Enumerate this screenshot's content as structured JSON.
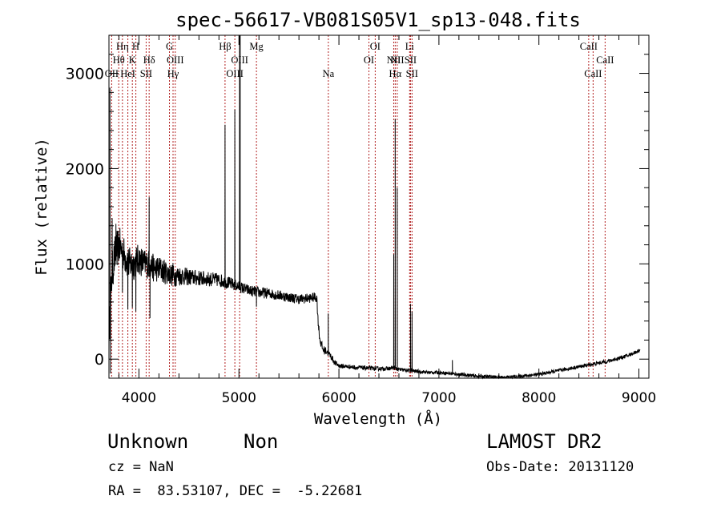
{
  "chart_data": {
    "type": "line",
    "title": "spec-56617-VB081S05V1_sp13-048.fits",
    "xlabel": "Wavelength (Å)",
    "ylabel": "Flux (relative)",
    "xlim": [
      3700,
      9100
    ],
    "ylim": [
      -200,
      3400
    ],
    "xticks": [
      4000,
      5000,
      6000,
      7000,
      8000,
      9000
    ],
    "yticks": [
      0,
      1000,
      2000,
      3000
    ],
    "grid": false,
    "line_color": "#000000",
    "marker_color": "#b22222",
    "lines": [
      {
        "label": "OII",
        "x": 3727,
        "row": 3
      },
      {
        "label": "Hθ",
        "x": 3798,
        "row": 2
      },
      {
        "label": "Hη",
        "x": 3835,
        "row": 1
      },
      {
        "label": "HeI",
        "x": 3889,
        "row": 3
      },
      {
        "label": "K",
        "x": 3934,
        "row": 2
      },
      {
        "label": "H",
        "x": 3969,
        "row": 1
      },
      {
        "label": "SII",
        "x": 4072,
        "row": 3
      },
      {
        "label": "Hδ",
        "x": 4102,
        "row": 2
      },
      {
        "label": "G",
        "x": 4305,
        "row": 1
      },
      {
        "label": "Hγ",
        "x": 4341,
        "row": 3
      },
      {
        "label": "OIII",
        "x": 4363,
        "row": 2
      },
      {
        "label": "Hβ",
        "x": 4861,
        "row": 1
      },
      {
        "label": "OIII",
        "x": 4959,
        "row": 3
      },
      {
        "label": "OIII",
        "x": 5007,
        "row": 2
      },
      {
        "label": "Mg",
        "x": 5175,
        "row": 1
      },
      {
        "label": "Na",
        "x": 5894,
        "row": 3
      },
      {
        "label": "OI",
        "x": 6300,
        "row": 2
      },
      {
        "label": "OI",
        "x": 6363,
        "row": 1
      },
      {
        "label": "NII",
        "x": 6548,
        "row": 2
      },
      {
        "label": "Hα",
        "x": 6563,
        "row": 3
      },
      {
        "label": "NII",
        "x": 6583,
        "row": 2
      },
      {
        "label": "Li",
        "x": 6707,
        "row": 1
      },
      {
        "label": "SII",
        "x": 6716,
        "row": 2
      },
      {
        "label": "SII",
        "x": 6731,
        "row": 3
      },
      {
        "label": "CaII",
        "x": 8498,
        "row": 1
      },
      {
        "label": "CaII",
        "x": 8542,
        "row": 3
      },
      {
        "label": "CaII",
        "x": 8662,
        "row": 2
      }
    ],
    "continuum": [
      [
        3700,
        250
      ],
      [
        3730,
        900
      ],
      [
        3760,
        1100
      ],
      [
        3800,
        1200
      ],
      [
        3850,
        1100
      ],
      [
        3900,
        1000
      ],
      [
        3950,
        1000
      ],
      [
        4000,
        1050
      ],
      [
        4050,
        1000
      ],
      [
        4100,
        1000
      ],
      [
        4150,
        950
      ],
      [
        4200,
        950
      ],
      [
        4250,
        920
      ],
      [
        4300,
        900
      ],
      [
        4350,
        870
      ],
      [
        4400,
        880
      ],
      [
        4500,
        860
      ],
      [
        4600,
        850
      ],
      [
        4700,
        840
      ],
      [
        4800,
        830
      ],
      [
        4900,
        800
      ],
      [
        5000,
        760
      ],
      [
        5100,
        720
      ],
      [
        5200,
        700
      ],
      [
        5300,
        690
      ],
      [
        5400,
        670
      ],
      [
        5500,
        650
      ],
      [
        5600,
        630
      ],
      [
        5700,
        640
      ],
      [
        5760,
        650
      ],
      [
        5780,
        640
      ],
      [
        5790,
        420
      ],
      [
        5810,
        200
      ],
      [
        5840,
        100
      ],
      [
        5880,
        80
      ],
      [
        5920,
        30
      ],
      [
        5960,
        -40
      ],
      [
        6000,
        -70
      ],
      [
        6100,
        -80
      ],
      [
        6200,
        -90
      ],
      [
        6300,
        -95
      ],
      [
        6400,
        -100
      ],
      [
        6500,
        -100
      ],
      [
        6540,
        -90
      ],
      [
        6600,
        -110
      ],
      [
        6700,
        -120
      ],
      [
        6800,
        -130
      ],
      [
        6900,
        -140
      ],
      [
        7000,
        -140
      ],
      [
        7100,
        -150
      ],
      [
        7200,
        -160
      ],
      [
        7300,
        -170
      ],
      [
        7400,
        -180
      ],
      [
        7500,
        -185
      ],
      [
        7600,
        -190
      ],
      [
        7700,
        -190
      ],
      [
        7800,
        -180
      ],
      [
        7900,
        -170
      ],
      [
        8000,
        -160
      ],
      [
        8100,
        -140
      ],
      [
        8200,
        -120
      ],
      [
        8300,
        -100
      ],
      [
        8400,
        -80
      ],
      [
        8500,
        -60
      ],
      [
        8600,
        -40
      ],
      [
        8700,
        -20
      ],
      [
        8800,
        10
      ],
      [
        8900,
        40
      ],
      [
        9000,
        90
      ],
      [
        9010,
        100
      ]
    ],
    "features": [
      [
        3710,
        2850
      ],
      [
        3715,
        -150
      ],
      [
        3732,
        1480
      ],
      [
        3770,
        1420
      ],
      [
        3835,
        700
      ],
      [
        3889,
        520
      ],
      [
        3934,
        540
      ],
      [
        3969,
        500
      ],
      [
        4102,
        1700
      ],
      [
        4110,
        430
      ],
      [
        4340,
        1010
      ],
      [
        4861,
        2460
      ],
      [
        4959,
        2620
      ],
      [
        5007,
        3400
      ],
      [
        5012,
        3400
      ],
      [
        5175,
        550
      ],
      [
        5893,
        480
      ],
      [
        6548,
        1100
      ],
      [
        6563,
        2520
      ],
      [
        6583,
        1800
      ],
      [
        6716,
        580
      ],
      [
        6731,
        500
      ],
      [
        7135,
        -10
      ]
    ],
    "noise_scale": [
      [
        3700,
        220
      ],
      [
        3900,
        180
      ],
      [
        4200,
        140
      ],
      [
        4500,
        90
      ],
      [
        5000,
        60
      ],
      [
        5800,
        50
      ],
      [
        6000,
        25
      ],
      [
        7000,
        18
      ],
      [
        9000,
        20
      ]
    ]
  },
  "footer": {
    "object_class": "Unknown",
    "object_subclass": "Non",
    "survey": "LAMOST DR2",
    "cz": "cz = NaN",
    "obs_date": "Obs-Date: 20131120",
    "coords": "RA =  83.53107, DEC =  -5.22681"
  }
}
